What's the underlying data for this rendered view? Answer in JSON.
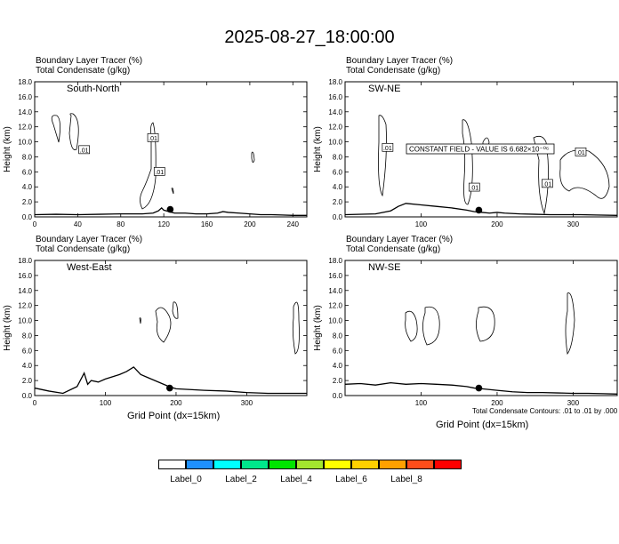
{
  "title": "2025-08-27_18:00:00",
  "panel_header_line1": "Boundary Layer Tracer    (%)",
  "panel_header_line2": "Total Condensate    (g/kg)",
  "x_title": "Grid Point (dx=15km)",
  "footnote": "Total Condensate Contours: .01 to .01 by .000",
  "constant_field_note": "CONSTANT FIELD - VALUE IS 6.682×10⁻⁰⁶",
  "contour_label": ".01",
  "colorbar": {
    "colors": [
      "#ffffff",
      "#1e90ff",
      "#00ffff",
      "#00e88b",
      "#00e600",
      "#a3e62e",
      "#ffff00",
      "#ffd000",
      "#ffa000",
      "#ff4d1a",
      "#ff0000"
    ],
    "labels": [
      "Label_0",
      "Label_2",
      "Label_4",
      "Label_6",
      "Label_8"
    ]
  },
  "chart_data": [
    {
      "type": "line",
      "panel": "South-North",
      "ylabel": "Height (km)",
      "ylim": [
        0,
        18
      ],
      "yticks": [
        "0.0",
        "2.0",
        "4.0",
        "6.0",
        "8.0",
        "10.0",
        "12.0",
        "14.0",
        "16.0",
        "18.0"
      ],
      "xlim": [
        0,
        253
      ],
      "xticks": [
        0,
        40,
        80,
        120,
        160,
        200,
        240
      ],
      "terrain": {
        "x": [
          0,
          20,
          40,
          60,
          80,
          100,
          110,
          115,
          118,
          120,
          125,
          130,
          140,
          150,
          160,
          170,
          175,
          180,
          190,
          200,
          210,
          220,
          230,
          240,
          253
        ],
        "y": [
          0.3,
          0.35,
          0.3,
          0.35,
          0.4,
          0.4,
          0.5,
          0.8,
          1.2,
          0.9,
          0.7,
          0.5,
          0.5,
          0.4,
          0.4,
          0.5,
          0.7,
          0.6,
          0.5,
          0.4,
          0.3,
          0.3,
          0.25,
          0.2,
          0.2
        ]
      },
      "marker": {
        "x": 126,
        "y": 1.0
      },
      "contour_labels": [
        {
          "x": 110,
          "y": 10.5
        },
        {
          "x": 46,
          "y": 8.9
        },
        {
          "x": 116,
          "y": 6.0
        }
      ]
    },
    {
      "type": "line",
      "panel": "SW-NE",
      "ylabel": "Height (km)",
      "ylim": [
        0,
        18
      ],
      "yticks": [
        "0.0",
        "2.0",
        "4.0",
        "6.0",
        "8.0",
        "10.0",
        "12.0",
        "14.0",
        "16.0",
        "18.0"
      ],
      "xlim": [
        0,
        358
      ],
      "xticks": [
        100,
        200,
        300
      ],
      "terrain": {
        "x": [
          0,
          40,
          60,
          70,
          80,
          100,
          120,
          140,
          160,
          170,
          180,
          190,
          200,
          210,
          230,
          250,
          270,
          290,
          310,
          330,
          358
        ],
        "y": [
          0.3,
          0.4,
          0.8,
          1.4,
          1.8,
          1.6,
          1.4,
          1.2,
          0.9,
          0.7,
          0.6,
          0.5,
          0.6,
          0.5,
          0.4,
          0.35,
          0.3,
          0.3,
          0.3,
          0.25,
          0.2
        ]
      },
      "marker": {
        "x": 176,
        "y": 0.9
      },
      "contour_labels": [
        {
          "x": 56,
          "y": 9.2
        },
        {
          "x": 170,
          "y": 3.9
        },
        {
          "x": 266,
          "y": 4.4
        },
        {
          "x": 310,
          "y": 8.6
        }
      ]
    },
    {
      "type": "line",
      "panel": "West-East",
      "ylabel": "Height (km)",
      "ylim": [
        0,
        18
      ],
      "yticks": [
        "0.0",
        "2.0",
        "4.0",
        "6.0",
        "8.0",
        "10.0",
        "12.0",
        "14.0",
        "16.0",
        "18.0"
      ],
      "xlim": [
        0,
        385
      ],
      "xticks": [
        0,
        100,
        200,
        300
      ],
      "terrain": {
        "x": [
          0,
          20,
          40,
          60,
          70,
          75,
          80,
          90,
          100,
          110,
          120,
          130,
          140,
          150,
          160,
          170,
          180,
          190,
          200,
          220,
          240,
          270,
          300,
          330,
          360,
          385
        ],
        "y": [
          1.0,
          0.6,
          0.3,
          1.2,
          3.0,
          1.5,
          2.0,
          1.8,
          2.2,
          2.5,
          2.8,
          3.2,
          3.8,
          2.8,
          2.4,
          2.0,
          1.6,
          1.2,
          0.9,
          0.8,
          0.7,
          0.6,
          0.4,
          0.3,
          0.3,
          0.3
        ]
      },
      "marker": {
        "x": 191,
        "y": 1.0
      }
    },
    {
      "type": "line",
      "panel": "NW-SE",
      "ylabel": "Height (km)",
      "ylim": [
        0,
        18
      ],
      "yticks": [
        "0.0",
        "2.0",
        "4.0",
        "6.0",
        "8.0",
        "10.0",
        "12.0",
        "14.0",
        "16.0",
        "18.0"
      ],
      "xlim": [
        0,
        358
      ],
      "xticks": [
        100,
        200,
        300
      ],
      "terrain": {
        "x": [
          0,
          20,
          40,
          60,
          80,
          100,
          120,
          140,
          160,
          170,
          180,
          190,
          200,
          220,
          240,
          260,
          280,
          300,
          320,
          340,
          358
        ],
        "y": [
          1.5,
          1.6,
          1.4,
          1.7,
          1.5,
          1.6,
          1.5,
          1.4,
          1.2,
          1.0,
          0.9,
          0.8,
          0.7,
          0.5,
          0.4,
          0.4,
          0.35,
          0.3,
          0.3,
          0.25,
          0.2
        ]
      },
      "marker": {
        "x": 176,
        "y": 1.0
      }
    }
  ]
}
